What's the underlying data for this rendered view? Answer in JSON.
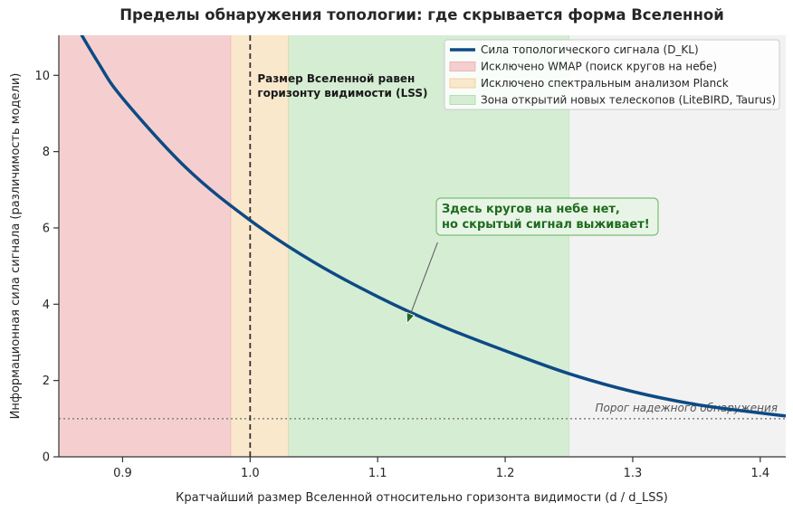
{
  "chart_data": {
    "type": "line",
    "title": "Пределы обнаружения топологии: где скрывается форма Вселенной",
    "xlabel": "Кратчайший размер Вселенной относительно горизонта видимости (d / d_LSS)",
    "ylabel": "Информационная сила сигнала (различимость модели)",
    "xlim": [
      0.85,
      1.42
    ],
    "ylim": [
      0,
      11.05
    ],
    "x_ticks": [
      {
        "value": 0.9,
        "label": "0.9"
      },
      {
        "value": 1.0,
        "label": "1.0"
      },
      {
        "value": 1.1,
        "label": "1.1"
      },
      {
        "value": 1.2,
        "label": "1.2"
      },
      {
        "value": 1.3,
        "label": "1.3"
      },
      {
        "value": 1.4,
        "label": "1.4"
      }
    ],
    "y_ticks": [
      {
        "value": 0,
        "label": "0"
      },
      {
        "value": 2,
        "label": "2"
      },
      {
        "value": 4,
        "label": "4"
      },
      {
        "value": 6,
        "label": "6"
      },
      {
        "value": 8,
        "label": "8"
      },
      {
        "value": 10,
        "label": "10"
      }
    ],
    "grid": false,
    "legend_position": "top-right",
    "series": [
      {
        "name": "Сила топологического сигнала (D_KL)",
        "color": "#0d4a85",
        "x": [
          0.85,
          0.88,
          0.9,
          0.95,
          1.0,
          1.05,
          1.1,
          1.15,
          1.2,
          1.25,
          1.3,
          1.35,
          1.4,
          1.42
        ],
        "y": [
          12.08,
          10.38,
          9.4,
          7.57,
          6.2,
          5.1,
          4.2,
          3.43,
          2.78,
          2.18,
          1.71,
          1.37,
          1.15,
          1.07
        ]
      }
    ],
    "regions": [
      {
        "name": "Исключено WMAP (поиск кругов на небе)",
        "x_from": 0.85,
        "x_to": 0.985,
        "color": "#f5cfcf",
        "edge": "#e7a8a8"
      },
      {
        "name": "Исключено спектральным анализом Planck",
        "x_from": 0.985,
        "x_to": 1.03,
        "color": "#fae8cc",
        "edge": "#efc68f"
      },
      {
        "name": "Зона открытий новых телескопов (LiteBIRD, Taurus)",
        "x_from": 1.03,
        "x_to": 1.25,
        "color": "#d5edd3",
        "edge": "#a9d8a4"
      },
      {
        "name": "",
        "x_from": 1.25,
        "x_to": 1.42,
        "color": "#f2f2f2",
        "edge": "none"
      }
    ],
    "vertical_line": {
      "x": 1.0,
      "color": "#333333",
      "label_lines": [
        "Размер Вселенной равен",
        "горизонту видимости (LSS)"
      ]
    },
    "threshold": {
      "y": 1.0,
      "color": "#888888",
      "label": "Порог надежного обнаружения"
    },
    "annotation": {
      "lines": [
        "Здесь кругов на небе нет,",
        "но скрытый сигнал выживает!"
      ],
      "point": {
        "x": 1.123,
        "y": 3.5
      },
      "text_anchor": {
        "x": 1.147,
        "y": 5.85
      },
      "color": "#1e6b1e",
      "box_fill": "#e8f5e6",
      "box_edge": "#79bf73"
    }
  }
}
